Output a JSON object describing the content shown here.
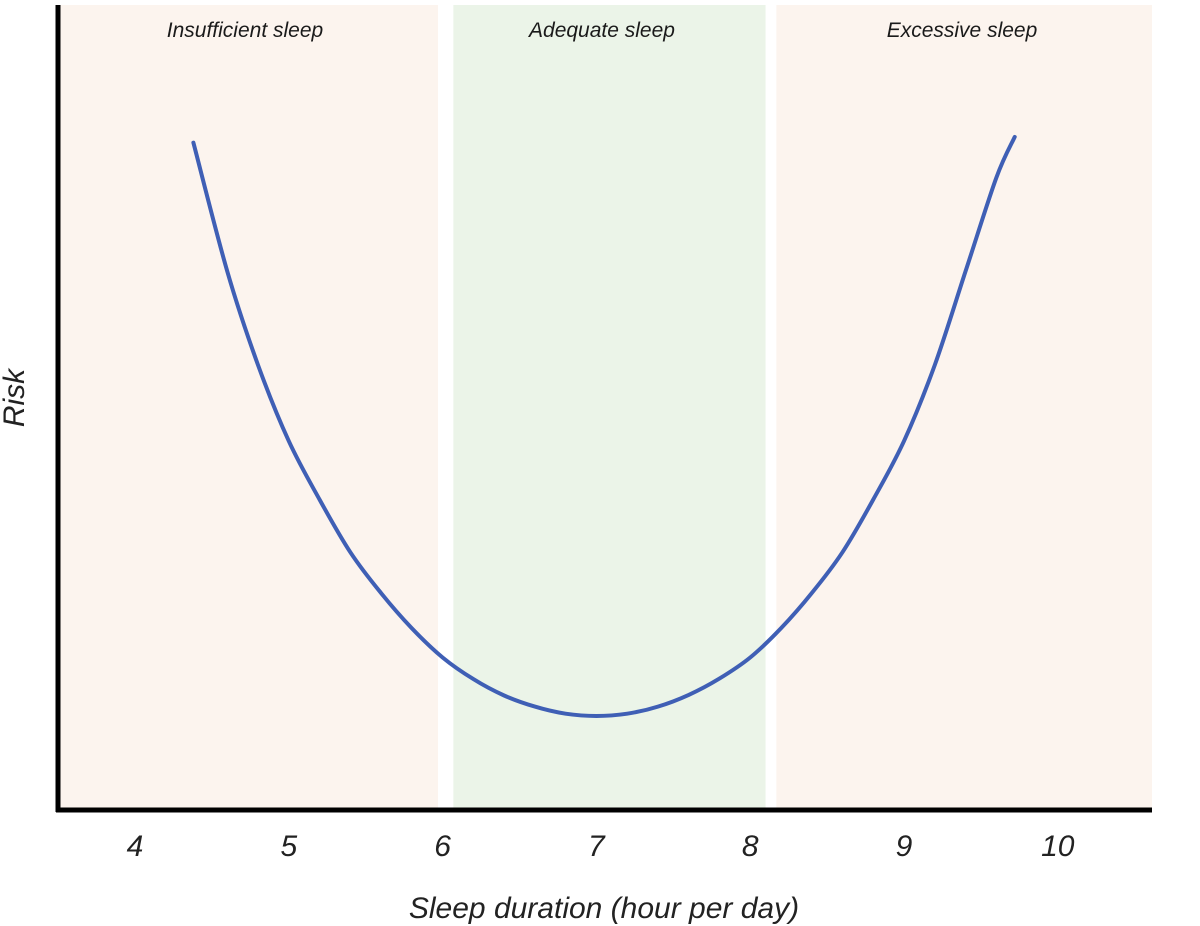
{
  "chart_data": {
    "type": "line",
    "xlabel": "Sleep duration (hour per day)",
    "ylabel": "Risk",
    "xlim": [
      3.5,
      10.7
    ],
    "ylim": [
      0,
      1.05
    ],
    "x_ticks": [
      "4",
      "5",
      "6",
      "7",
      "8",
      "9",
      "10"
    ],
    "grid": false,
    "zones": [
      {
        "label": "Insufficient sleep",
        "from": 3.5,
        "to": 5.97,
        "color": "#fcf4ee"
      },
      {
        "label": "Adequate sleep",
        "from": 6.07,
        "to": 8.1,
        "color": "#ebf4e8"
      },
      {
        "label": "Excessive sleep",
        "from": 8.17,
        "to": 10.7,
        "color": "#fcf4ee"
      }
    ],
    "series": [
      {
        "color": "#3f5fb5",
        "x": [
          4.38,
          4.6,
          4.8,
          5.0,
          5.2,
          5.4,
          5.6,
          5.8,
          6.0,
          6.2,
          6.4,
          6.6,
          6.8,
          7.0,
          7.2,
          7.4,
          7.6,
          7.8,
          8.0,
          8.2,
          8.4,
          8.6,
          8.8,
          9.0,
          9.2,
          9.4,
          9.6,
          9.72
        ],
        "y": [
          0.98,
          0.76,
          0.6,
          0.47,
          0.37,
          0.28,
          0.21,
          0.15,
          0.1,
          0.063,
          0.035,
          0.016,
          0.004,
          0.0,
          0.004,
          0.016,
          0.036,
          0.064,
          0.1,
          0.15,
          0.21,
          0.28,
          0.37,
          0.47,
          0.6,
          0.76,
          0.92,
          0.99
        ]
      }
    ]
  }
}
